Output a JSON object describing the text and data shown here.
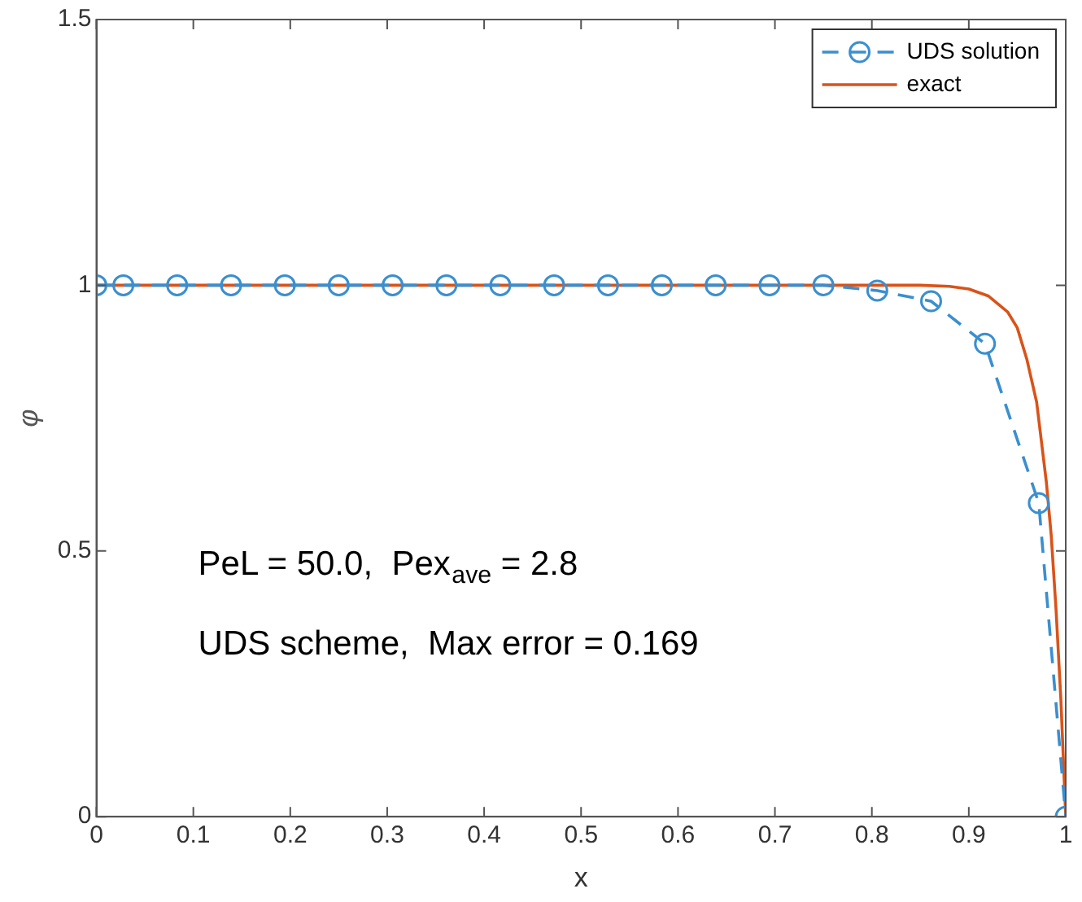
{
  "chart_data": {
    "type": "line",
    "xlabel": "x",
    "ylabel": "φ",
    "xlim": [
      0,
      1
    ],
    "xticks": [
      0,
      0.1,
      0.2,
      0.3,
      0.4,
      0.5,
      0.6,
      0.7,
      0.8,
      0.9,
      1
    ],
    "ylim": [
      0,
      1.5
    ],
    "yticks": [
      0,
      0.5,
      1,
      1.5
    ],
    "grid": false,
    "legend": "top right",
    "series": [
      {
        "name": "UDS solution",
        "color": "#3a8fcf",
        "marker": "circle",
        "line_style": "dashed",
        "x": [
          0,
          0.0278,
          0.0833,
          0.1389,
          0.1944,
          0.25,
          0.3056,
          0.3611,
          0.4167,
          0.4722,
          0.5278,
          0.5833,
          0.6389,
          0.6944,
          0.75,
          0.8056,
          0.8611,
          0.9167,
          0.9722,
          1
        ],
        "values": [
          1,
          1,
          1,
          1,
          1,
          1,
          1,
          1,
          1,
          1,
          1,
          1,
          1,
          1,
          1,
          0.99,
          0.97,
          0.89,
          0.59,
          0
        ]
      },
      {
        "name": "exact",
        "color": "#d95319",
        "marker": "none",
        "line_style": "solid",
        "x": [
          0,
          0.1,
          0.2,
          0.3,
          0.4,
          0.5,
          0.6,
          0.7,
          0.8,
          0.85,
          0.88,
          0.9,
          0.92,
          0.94,
          0.95,
          0.96,
          0.97,
          0.98,
          0.985,
          0.99,
          0.995,
          1
        ],
        "values": [
          1,
          1,
          1,
          1,
          1,
          1,
          1,
          1,
          1,
          1,
          0.998,
          0.993,
          0.98,
          0.95,
          0.92,
          0.86,
          0.78,
          0.63,
          0.53,
          0.39,
          0.22,
          0
        ]
      }
    ],
    "annotations": [
      "PeL = 50.0,  Pex$_{ave}$ = 2.8",
      "UDS scheme,  Max error = 0.169"
    ]
  }
}
